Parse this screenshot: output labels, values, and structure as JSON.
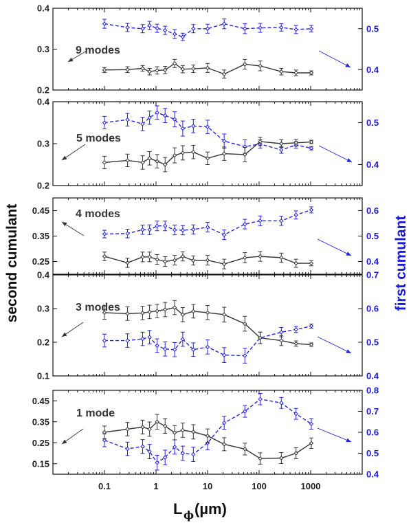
{
  "chart_data": {
    "type": "line",
    "xlabel": "L",
    "xlabel_subscript": "ϕ",
    "xlabel_unit": "(µm)",
    "ylabel_left": "second cumulant",
    "ylabel_right": "first cumulant",
    "xscale": "log",
    "xlim": [
      0.01,
      10000
    ],
    "x_ticks": [
      0.1,
      1,
      10,
      100,
      1000
    ],
    "x_tick_labels": [
      "0.1",
      "1",
      "10",
      "100",
      "1000"
    ],
    "colors": {
      "left_series": "#333333",
      "right_series": "#2222dd"
    },
    "x": [
      0.1,
      0.28,
      0.55,
      0.75,
      1.05,
      1.5,
      2.3,
      3.3,
      5.3,
      10,
      21,
      53,
      105,
      270,
      520,
      1030
    ],
    "panels": [
      {
        "label": "9 modes",
        "x": [
          0.1,
          0.28,
          0.55,
          0.75,
          1.05,
          1.5,
          2.3,
          3.3,
          5.3,
          10,
          21,
          53,
          105,
          270,
          520,
          1030
        ],
        "left_ylim": [
          0.2,
          0.4
        ],
        "left_ticks": [
          "0.2",
          "0.3",
          "0.4"
        ],
        "right_ylim": [
          0.35,
          0.55
        ],
        "right_ticks": [
          "0.4",
          "0.5"
        ],
        "second_cumulant": [
          0.249,
          0.25,
          0.253,
          0.245,
          0.248,
          0.249,
          0.265,
          0.251,
          0.252,
          0.254,
          0.239,
          0.263,
          0.259,
          0.245,
          0.242,
          0.242
        ],
        "second_cumulant_err": [
          0.006,
          0.007,
          0.007,
          0.008,
          0.009,
          0.009,
          0.01,
          0.009,
          0.009,
          0.011,
          0.01,
          0.012,
          0.012,
          0.008,
          0.007,
          0.005
        ],
        "first_cumulant": [
          0.512,
          0.503,
          0.5,
          0.508,
          0.501,
          0.496,
          0.487,
          0.48,
          0.5,
          0.5,
          0.512,
          0.5,
          0.502,
          0.503,
          0.498,
          0.5
        ],
        "first_cumulant_err": [
          0.011,
          0.01,
          0.01,
          0.01,
          0.01,
          0.01,
          0.011,
          0.009,
          0.01,
          0.011,
          0.012,
          0.012,
          0.011,
          0.009,
          0.01,
          0.008
        ]
      },
      {
        "label": "5 modes",
        "x": [
          0.1,
          0.28,
          0.55,
          0.75,
          1.05,
          1.5,
          2.3,
          3.3,
          5.3,
          10,
          21,
          53,
          105,
          270,
          520,
          1030
        ],
        "left_ylim": [
          0.2,
          0.4
        ],
        "left_ticks": [
          "0.2",
          "0.3",
          "0.4"
        ],
        "right_ylim": [
          0.35,
          0.55
        ],
        "right_ticks": [
          "0.4",
          "0.5"
        ],
        "second_cumulant": [
          0.255,
          0.26,
          0.255,
          0.265,
          0.258,
          0.25,
          0.272,
          0.278,
          0.28,
          0.265,
          0.276,
          0.274,
          0.305,
          0.3,
          0.302,
          0.304
        ],
        "second_cumulant_err": [
          0.015,
          0.015,
          0.016,
          0.016,
          0.016,
          0.017,
          0.018,
          0.017,
          0.016,
          0.015,
          0.016,
          0.017,
          0.01,
          0.009,
          0.008,
          0.004
        ],
        "first_cumulant": [
          0.5,
          0.507,
          0.497,
          0.512,
          0.524,
          0.517,
          0.508,
          0.486,
          0.492,
          0.49,
          0.456,
          0.443,
          0.449,
          0.435,
          0.447,
          0.439
        ],
        "first_cumulant_err": [
          0.015,
          0.015,
          0.016,
          0.016,
          0.016,
          0.017,
          0.018,
          0.018,
          0.016,
          0.016,
          0.017,
          0.016,
          0.01,
          0.008,
          0.008,
          0.004
        ]
      },
      {
        "label": "4 modes",
        "x": [
          0.1,
          0.28,
          0.55,
          0.75,
          1.05,
          1.5,
          2.3,
          3.3,
          5.3,
          10,
          21,
          53,
          105,
          270,
          520,
          1030
        ],
        "left_ylim": [
          0.2,
          0.5
        ],
        "left_ticks": [
          "0.25",
          "0.35",
          "0.45"
        ],
        "right_ylim": [
          0.35,
          0.65
        ],
        "right_ticks": [
          "0.4",
          "0.5",
          "0.6"
        ],
        "second_cumulant": [
          0.27,
          0.245,
          0.268,
          0.268,
          0.258,
          0.25,
          0.255,
          0.27,
          0.254,
          0.255,
          0.24,
          0.265,
          0.27,
          0.265,
          0.243,
          0.243
        ],
        "second_cumulant_err": [
          0.017,
          0.018,
          0.019,
          0.019,
          0.019,
          0.019,
          0.019,
          0.018,
          0.018,
          0.019,
          0.019,
          0.02,
          0.019,
          0.018,
          0.016,
          0.01
        ],
        "first_cumulant": [
          0.508,
          0.51,
          0.525,
          0.525,
          0.54,
          0.54,
          0.524,
          0.523,
          0.526,
          0.535,
          0.505,
          0.547,
          0.56,
          0.56,
          0.583,
          0.603
        ],
        "first_cumulant_err": [
          0.015,
          0.017,
          0.018,
          0.019,
          0.019,
          0.019,
          0.019,
          0.018,
          0.018,
          0.019,
          0.019,
          0.019,
          0.019,
          0.018,
          0.016,
          0.012
        ]
      },
      {
        "label": "3 modes",
        "x": [
          0.1,
          0.28,
          0.55,
          0.75,
          1.05,
          1.5,
          2.3,
          3.3,
          5.3,
          10,
          21,
          53,
          105,
          270,
          520,
          1030
        ],
        "left_ylim": [
          0.1,
          0.4
        ],
        "left_ticks": [
          "0.1",
          "0.2",
          "0.3",
          "0.4"
        ],
        "right_ylim": [
          0.4,
          0.7
        ],
        "right_ticks": [
          "0.4",
          "0.5",
          "0.6",
          "0.7"
        ],
        "second_cumulant": [
          0.288,
          0.285,
          0.287,
          0.29,
          0.293,
          0.297,
          0.303,
          0.282,
          0.292,
          0.288,
          0.282,
          0.255,
          0.213,
          0.205,
          0.196,
          0.193
        ],
        "second_cumulant_err": [
          0.02,
          0.02,
          0.02,
          0.02,
          0.02,
          0.021,
          0.021,
          0.021,
          0.02,
          0.021,
          0.022,
          0.022,
          0.017,
          0.015,
          0.008,
          0.005
        ],
        "first_cumulant": [
          0.505,
          0.505,
          0.51,
          0.515,
          0.49,
          0.48,
          0.478,
          0.509,
          0.478,
          0.486,
          0.462,
          0.46,
          0.513,
          0.53,
          0.538,
          0.548
        ],
        "first_cumulant_err": [
          0.019,
          0.02,
          0.02,
          0.02,
          0.02,
          0.021,
          0.021,
          0.021,
          0.02,
          0.021,
          0.022,
          0.022,
          0.017,
          0.014,
          0.009,
          0.006
        ]
      },
      {
        "label": "1 mode",
        "x": [
          0.1,
          0.28,
          0.55,
          0.75,
          1.05,
          1.5,
          2.3,
          3.3,
          5.3,
          10,
          21,
          53,
          105,
          270,
          520,
          1030
        ],
        "left_ylim": [
          0.1,
          0.5
        ],
        "left_ticks": [
          "0.15",
          "0.25",
          "0.35",
          "0.45"
        ],
        "right_ylim": [
          0.4,
          0.8
        ],
        "right_ticks": [
          "0.4",
          "0.5",
          "0.6",
          "0.7",
          "0.8"
        ],
        "second_cumulant": [
          0.3,
          0.315,
          0.325,
          0.315,
          0.35,
          0.33,
          0.298,
          0.31,
          0.302,
          0.283,
          0.243,
          0.22,
          0.175,
          0.177,
          0.2,
          0.248
        ],
        "second_cumulant_err": [
          0.03,
          0.032,
          0.033,
          0.034,
          0.035,
          0.035,
          0.034,
          0.034,
          0.034,
          0.033,
          0.031,
          0.028,
          0.027,
          0.026,
          0.026,
          0.025
        ],
        "first_cumulant": [
          0.562,
          0.521,
          0.532,
          0.508,
          0.455,
          0.48,
          0.53,
          0.5,
          0.495,
          0.549,
          0.645,
          0.7,
          0.758,
          0.74,
          0.688,
          0.64
        ],
        "first_cumulant_err": [
          0.031,
          0.032,
          0.033,
          0.034,
          0.035,
          0.035,
          0.034,
          0.034,
          0.034,
          0.033,
          0.031,
          0.028,
          0.027,
          0.026,
          0.026,
          0.025
        ]
      }
    ]
  }
}
